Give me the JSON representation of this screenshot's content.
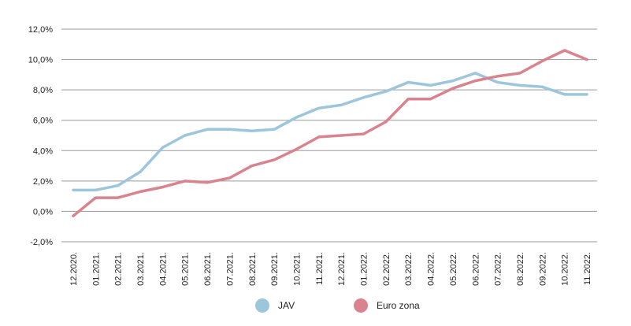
{
  "chart_data": {
    "type": "line",
    "title": "",
    "xlabel": "",
    "ylabel": "",
    "categories": [
      "12.2020.",
      "01.2021.",
      "02.2021.",
      "03.2021.",
      "04.2021.",
      "05.2021.",
      "06.2021.",
      "07.2021.",
      "08.2021.",
      "09.2021.",
      "10.2021.",
      "11.2021.",
      "12.2021.",
      "01.2022.",
      "02.2022.",
      "03.2022.",
      "04.2022.",
      "05.2022.",
      "06.2022.",
      "07.2022.",
      "08.2022.",
      "09.2022.",
      "10.2022.",
      "11.2022."
    ],
    "ylim": [
      -2,
      12
    ],
    "yticks": [
      -2,
      0,
      2,
      4,
      6,
      8,
      10,
      12
    ],
    "ytick_labels": [
      "-2,0%",
      "0,0%",
      "2,0%",
      "4,0%",
      "6,0%",
      "8,0%",
      "10,0%",
      "12,0%"
    ],
    "grid": true,
    "legend_position": "bottom",
    "series": [
      {
        "name": "JAV",
        "color": "#9dc6dd",
        "values": [
          1.4,
          1.4,
          1.7,
          2.6,
          4.2,
          5.0,
          5.4,
          5.4,
          5.3,
          5.4,
          6.2,
          6.8,
          7.0,
          7.5,
          7.9,
          8.5,
          8.3,
          8.6,
          9.1,
          8.5,
          8.3,
          8.2,
          7.7,
          7.7
        ]
      },
      {
        "name": "Euro zona",
        "color": "#d9838f",
        "values": [
          -0.3,
          0.9,
          0.9,
          1.3,
          1.6,
          2.0,
          1.9,
          2.2,
          3.0,
          3.4,
          4.1,
          4.9,
          5.0,
          5.1,
          5.9,
          7.4,
          7.4,
          8.1,
          8.6,
          8.9,
          9.1,
          9.9,
          10.6,
          10.0
        ]
      }
    ]
  }
}
